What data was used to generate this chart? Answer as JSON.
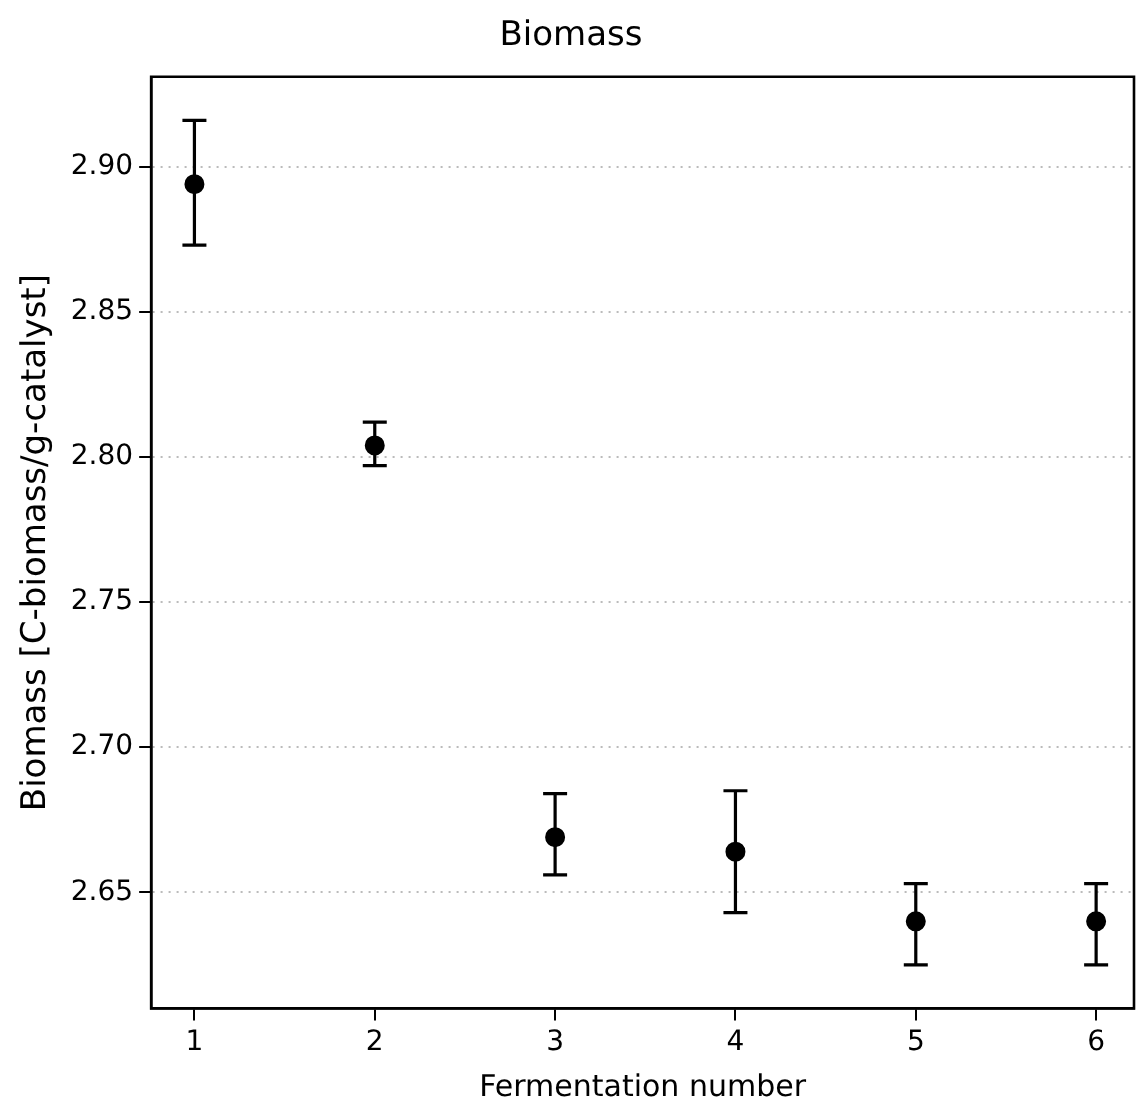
{
  "chart_data": {
    "type": "scatter",
    "title": "Biomass",
    "xlabel": "Fermentation number",
    "ylabel": "Biomass [C-biomass/g-catalyst]",
    "x": [
      1,
      2,
      3,
      4,
      5,
      6
    ],
    "values": [
      2.894,
      2.804,
      2.669,
      2.664,
      2.64,
      2.64
    ],
    "errors": [
      [
        2.873,
        2.916
      ],
      [
        2.797,
        2.812
      ],
      [
        2.656,
        2.684
      ],
      [
        2.643,
        2.685
      ],
      [
        2.625,
        2.653
      ],
      [
        2.625,
        2.653
      ]
    ],
    "color": "#000000",
    "marker": "circle",
    "xlim": [
      0.76,
      6.21
    ],
    "xticks": [
      1,
      2,
      3,
      4,
      5,
      6
    ],
    "ylim": [
      2.61,
      2.931
    ],
    "yticks": [
      2.65,
      {
        "value": 2.7,
        "label": "2.70"
      },
      2.75,
      {
        "value": 2.8,
        "label": "2.80"
      },
      2.85,
      {
        "value": 2.9,
        "label": "2.90"
      }
    ],
    "grid": "y"
  }
}
